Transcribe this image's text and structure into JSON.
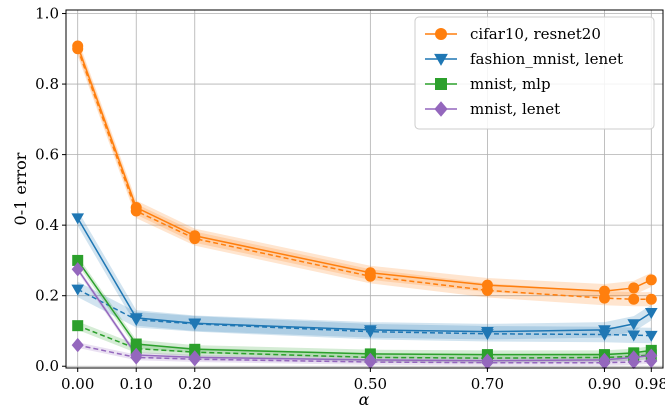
{
  "chart_data": {
    "type": "line",
    "xlabel": "α",
    "ylabel": "0-1 error",
    "xlim": [
      -0.02,
      1.0
    ],
    "ylim": [
      -0.005,
      1.01
    ],
    "x_ticks": [
      0.0,
      0.1,
      0.2,
      0.5,
      0.7,
      0.9,
      0.98
    ],
    "x_tick_labels": [
      "0.00",
      "0.10",
      "0.20",
      "0.50",
      "0.70",
      "0.90",
      "0.98"
    ],
    "y_ticks": [
      0.0,
      0.2,
      0.4,
      0.6,
      0.8,
      1.0
    ],
    "y_tick_labels": [
      "0.0",
      "0.2",
      "0.4",
      "0.6",
      "0.8",
      "1.0"
    ],
    "grid": true,
    "legend_position": "top-right",
    "x": [
      0.0,
      0.1,
      0.2,
      0.5,
      0.7,
      0.9,
      0.95,
      0.98
    ],
    "series": [
      {
        "name": "cifar10, resnet20",
        "color": "#ff7f0e",
        "marker": "circle",
        "solid": [
          0.908,
          0.45,
          0.37,
          0.265,
          0.23,
          0.213,
          0.222,
          0.245
        ],
        "dashed": [
          0.9,
          0.44,
          0.362,
          0.255,
          0.215,
          0.193,
          0.19,
          0.19
        ],
        "band_width": 0.02
      },
      {
        "name": "fashion_mnist, lenet",
        "color": "#1f77b4",
        "marker": "triangle-down",
        "solid": [
          0.42,
          0.137,
          0.122,
          0.103,
          0.098,
          0.103,
          0.12,
          0.152
        ],
        "dashed": [
          0.218,
          0.132,
          0.12,
          0.098,
          0.092,
          0.09,
          0.088,
          0.087
        ],
        "band_width": 0.022
      },
      {
        "name": "mnist, mlp",
        "color": "#2ca02c",
        "marker": "square",
        "solid": [
          0.3,
          0.063,
          0.048,
          0.035,
          0.033,
          0.033,
          0.038,
          0.045
        ],
        "dashed": [
          0.115,
          0.05,
          0.04,
          0.025,
          0.023,
          0.025,
          0.028,
          0.032
        ],
        "band_width": 0.012
      },
      {
        "name": "mnist, lenet",
        "color": "#9467bd",
        "marker": "diamond",
        "solid": [
          0.275,
          0.032,
          0.025,
          0.018,
          0.016,
          0.018,
          0.025,
          0.03
        ],
        "dashed": [
          0.06,
          0.025,
          0.02,
          0.012,
          0.01,
          0.01,
          0.012,
          0.015
        ],
        "band_width": 0.008
      }
    ]
  }
}
